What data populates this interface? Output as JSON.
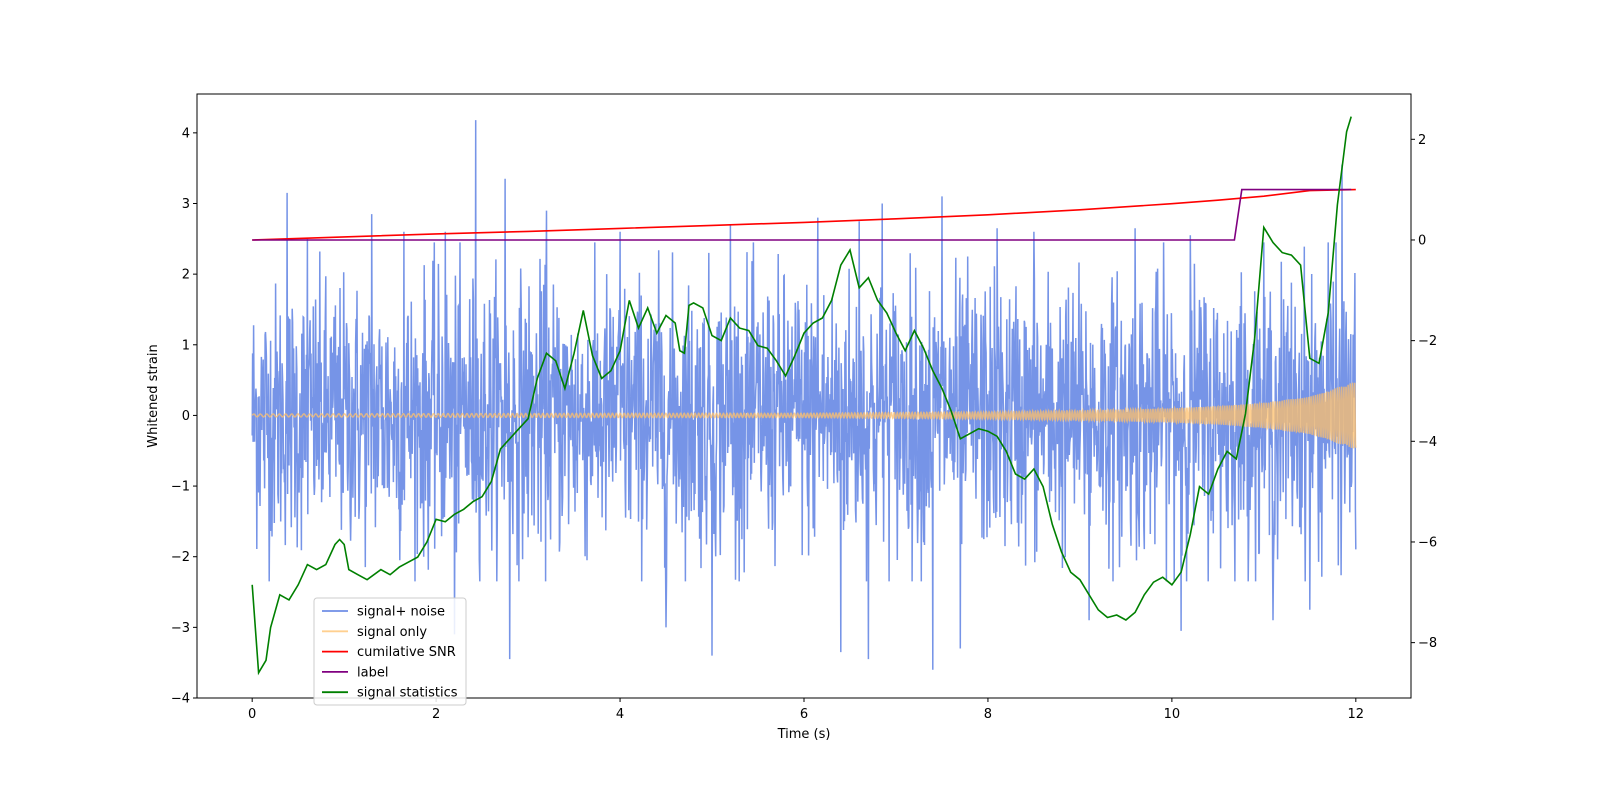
{
  "chart_data": {
    "type": "line",
    "title": "",
    "xlabel": "Time (s)",
    "ylabel": "Whitened strain",
    "ylabel_right": "",
    "xlim": [
      -0.6,
      12.6
    ],
    "ylim": [
      -4,
      4.55
    ],
    "ylim_right": [
      -9.1,
      2.9
    ],
    "x_ticks": [
      0,
      2,
      4,
      6,
      8,
      10,
      12
    ],
    "x_tick_labels": [
      "0",
      "2",
      "4",
      "6",
      "8",
      "10",
      "12"
    ],
    "y_ticks": [
      -4,
      -3,
      -2,
      -1,
      0,
      1,
      2,
      3,
      4
    ],
    "y_tick_labels": [
      "−4",
      "−3",
      "−2",
      "−1",
      "0",
      "1",
      "2",
      "3",
      "4"
    ],
    "y_ticks_right": [
      -8,
      -6,
      -4,
      -2,
      0,
      2
    ],
    "y_tick_labels_right": [
      "−8",
      "−6",
      "−4",
      "−2",
      "0",
      "2"
    ],
    "grid": false,
    "legend_position": "lower-left",
    "series": [
      {
        "name": "signal+ noise",
        "color": "#6f8ee6",
        "axis": "left",
        "envelope": {
          "x": [
            0,
            2,
            4,
            6,
            8,
            10,
            12
          ],
          "upper_typical": [
            1.45,
            1.5,
            1.5,
            1.55,
            1.5,
            1.5,
            1.6
          ],
          "lower_typical": [
            -1.45,
            -1.5,
            -1.55,
            -1.5,
            -1.5,
            -1.55,
            -1.5
          ]
        },
        "peaks": [
          {
            "x": 0.38,
            "y": 3.15
          },
          {
            "x": 0.6,
            "y": 2.5
          },
          {
            "x": 1.3,
            "y": 2.85
          },
          {
            "x": 1.65,
            "y": 2.6
          },
          {
            "x": 2.1,
            "y": 2.6
          },
          {
            "x": 2.43,
            "y": 4.18
          },
          {
            "x": 2.75,
            "y": 3.35
          },
          {
            "x": 3.2,
            "y": 2.9
          },
          {
            "x": 4.0,
            "y": 2.6
          },
          {
            "x": 5.2,
            "y": 2.7
          },
          {
            "x": 6.15,
            "y": 2.8
          },
          {
            "x": 6.6,
            "y": 2.75
          },
          {
            "x": 6.85,
            "y": 3.0
          },
          {
            "x": 7.5,
            "y": 3.1
          },
          {
            "x": 8.1,
            "y": 2.65
          },
          {
            "x": 8.5,
            "y": 2.6
          },
          {
            "x": 9.1,
            "y": 2.5
          },
          {
            "x": 9.6,
            "y": 2.65
          },
          {
            "x": 10.2,
            "y": 2.55
          },
          {
            "x": 11.7,
            "y": 2.45
          },
          {
            "x": 11.85,
            "y": 3.55
          },
          {
            "x": 2.8,
            "y": -3.45
          },
          {
            "x": 2.2,
            "y": -3.1
          },
          {
            "x": 4.5,
            "y": -3.0
          },
          {
            "x": 5.0,
            "y": -3.4
          },
          {
            "x": 6.4,
            "y": -3.35
          },
          {
            "x": 6.7,
            "y": -3.45
          },
          {
            "x": 7.4,
            "y": -3.6
          },
          {
            "x": 7.7,
            "y": -3.3
          },
          {
            "x": 9.1,
            "y": -2.9
          },
          {
            "x": 10.1,
            "y": -3.05
          },
          {
            "x": 11.1,
            "y": -2.9
          },
          {
            "x": 11.5,
            "y": -2.75
          }
        ]
      },
      {
        "name": "signal only",
        "color": "#ffc06b",
        "axis": "left",
        "amplitude_envelope": {
          "x": [
            0,
            4,
            6,
            8,
            9,
            10,
            10.5,
            11,
            11.5,
            12
          ],
          "amplitude": [
            0.02,
            0.03,
            0.03,
            0.05,
            0.07,
            0.1,
            0.13,
            0.18,
            0.27,
            0.48
          ]
        }
      },
      {
        "name": "cumilative SNR",
        "color": "#ff0000",
        "axis": "right",
        "x": [
          0,
          1,
          2,
          3,
          4,
          5,
          6,
          7,
          8,
          9,
          10,
          10.5,
          11,
          11.5,
          12
        ],
        "y": [
          0.0,
          0.06,
          0.12,
          0.17,
          0.23,
          0.29,
          0.35,
          0.42,
          0.5,
          0.6,
          0.72,
          0.79,
          0.87,
          0.98,
          1.0
        ]
      },
      {
        "name": "label",
        "color": "#800080",
        "axis": "right",
        "x": [
          0,
          10.68,
          10.76,
          11.95
        ],
        "y": [
          0,
          0,
          1,
          1
        ]
      },
      {
        "name": "signal statistics",
        "color": "#008000",
        "axis": "right",
        "x": [
          0,
          0.07,
          0.15,
          0.2,
          0.3,
          0.4,
          0.5,
          0.6,
          0.7,
          0.8,
          0.9,
          0.95,
          1.0,
          1.05,
          1.15,
          1.25,
          1.4,
          1.5,
          1.6,
          1.7,
          1.8,
          1.9,
          2.0,
          2.1,
          2.2,
          2.3,
          2.4,
          2.5,
          2.6,
          2.7,
          2.8,
          2.9,
          3.0,
          3.1,
          3.2,
          3.3,
          3.4,
          3.5,
          3.6,
          3.7,
          3.8,
          3.9,
          4.0,
          4.1,
          4.2,
          4.3,
          4.4,
          4.5,
          4.6,
          4.65,
          4.7,
          4.75,
          4.8,
          4.9,
          5.0,
          5.1,
          5.2,
          5.3,
          5.4,
          5.5,
          5.6,
          5.7,
          5.8,
          5.9,
          6.0,
          6.1,
          6.2,
          6.3,
          6.4,
          6.5,
          6.6,
          6.7,
          6.8,
          6.9,
          7.0,
          7.1,
          7.2,
          7.3,
          7.4,
          7.5,
          7.6,
          7.7,
          7.8,
          7.9,
          8.0,
          8.1,
          8.2,
          8.3,
          8.4,
          8.5,
          8.6,
          8.7,
          8.8,
          8.9,
          9.0,
          9.1,
          9.2,
          9.3,
          9.4,
          9.5,
          9.6,
          9.7,
          9.8,
          9.9,
          10.0,
          10.1,
          10.2,
          10.3,
          10.4,
          10.5,
          10.6,
          10.7,
          10.8,
          10.9,
          11.0,
          11.1,
          11.2,
          11.3,
          11.4,
          11.5,
          11.6,
          11.7,
          11.8,
          11.9,
          11.95
        ],
        "y": [
          -6.85,
          -8.6,
          -8.35,
          -7.7,
          -7.05,
          -7.15,
          -6.85,
          -6.45,
          -6.55,
          -6.45,
          -6.05,
          -5.95,
          -6.05,
          -6.55,
          -6.65,
          -6.75,
          -6.55,
          -6.65,
          -6.5,
          -6.4,
          -6.3,
          -6.0,
          -5.55,
          -5.6,
          -5.45,
          -5.35,
          -5.2,
          -5.1,
          -4.8,
          -4.15,
          -3.95,
          -3.75,
          -3.55,
          -2.75,
          -2.25,
          -2.4,
          -2.95,
          -2.25,
          -1.4,
          -2.3,
          -2.75,
          -2.6,
          -2.2,
          -1.2,
          -1.75,
          -1.35,
          -1.85,
          -1.5,
          -1.65,
          -2.2,
          -2.25,
          -1.3,
          -1.25,
          -1.35,
          -1.9,
          -2.0,
          -1.55,
          -1.75,
          -1.8,
          -2.1,
          -2.15,
          -2.4,
          -2.7,
          -2.3,
          -1.85,
          -1.65,
          -1.55,
          -1.2,
          -0.5,
          -0.2,
          -0.95,
          -0.75,
          -1.2,
          -1.45,
          -1.85,
          -2.2,
          -1.8,
          -2.15,
          -2.6,
          -2.95,
          -3.4,
          -3.95,
          -3.85,
          -3.75,
          -3.8,
          -3.9,
          -4.2,
          -4.65,
          -4.75,
          -4.55,
          -4.9,
          -5.65,
          -6.2,
          -6.6,
          -6.75,
          -7.05,
          -7.35,
          -7.5,
          -7.45,
          -7.55,
          -7.4,
          -7.05,
          -6.8,
          -6.7,
          -6.85,
          -6.6,
          -5.85,
          -4.9,
          -5.05,
          -4.55,
          -4.2,
          -4.35,
          -3.45,
          -1.95,
          0.25,
          -0.05,
          -0.25,
          -0.3,
          -0.5,
          -2.35,
          -2.45,
          -1.45,
          0.7,
          2.15,
          2.45
        ]
      }
    ]
  }
}
